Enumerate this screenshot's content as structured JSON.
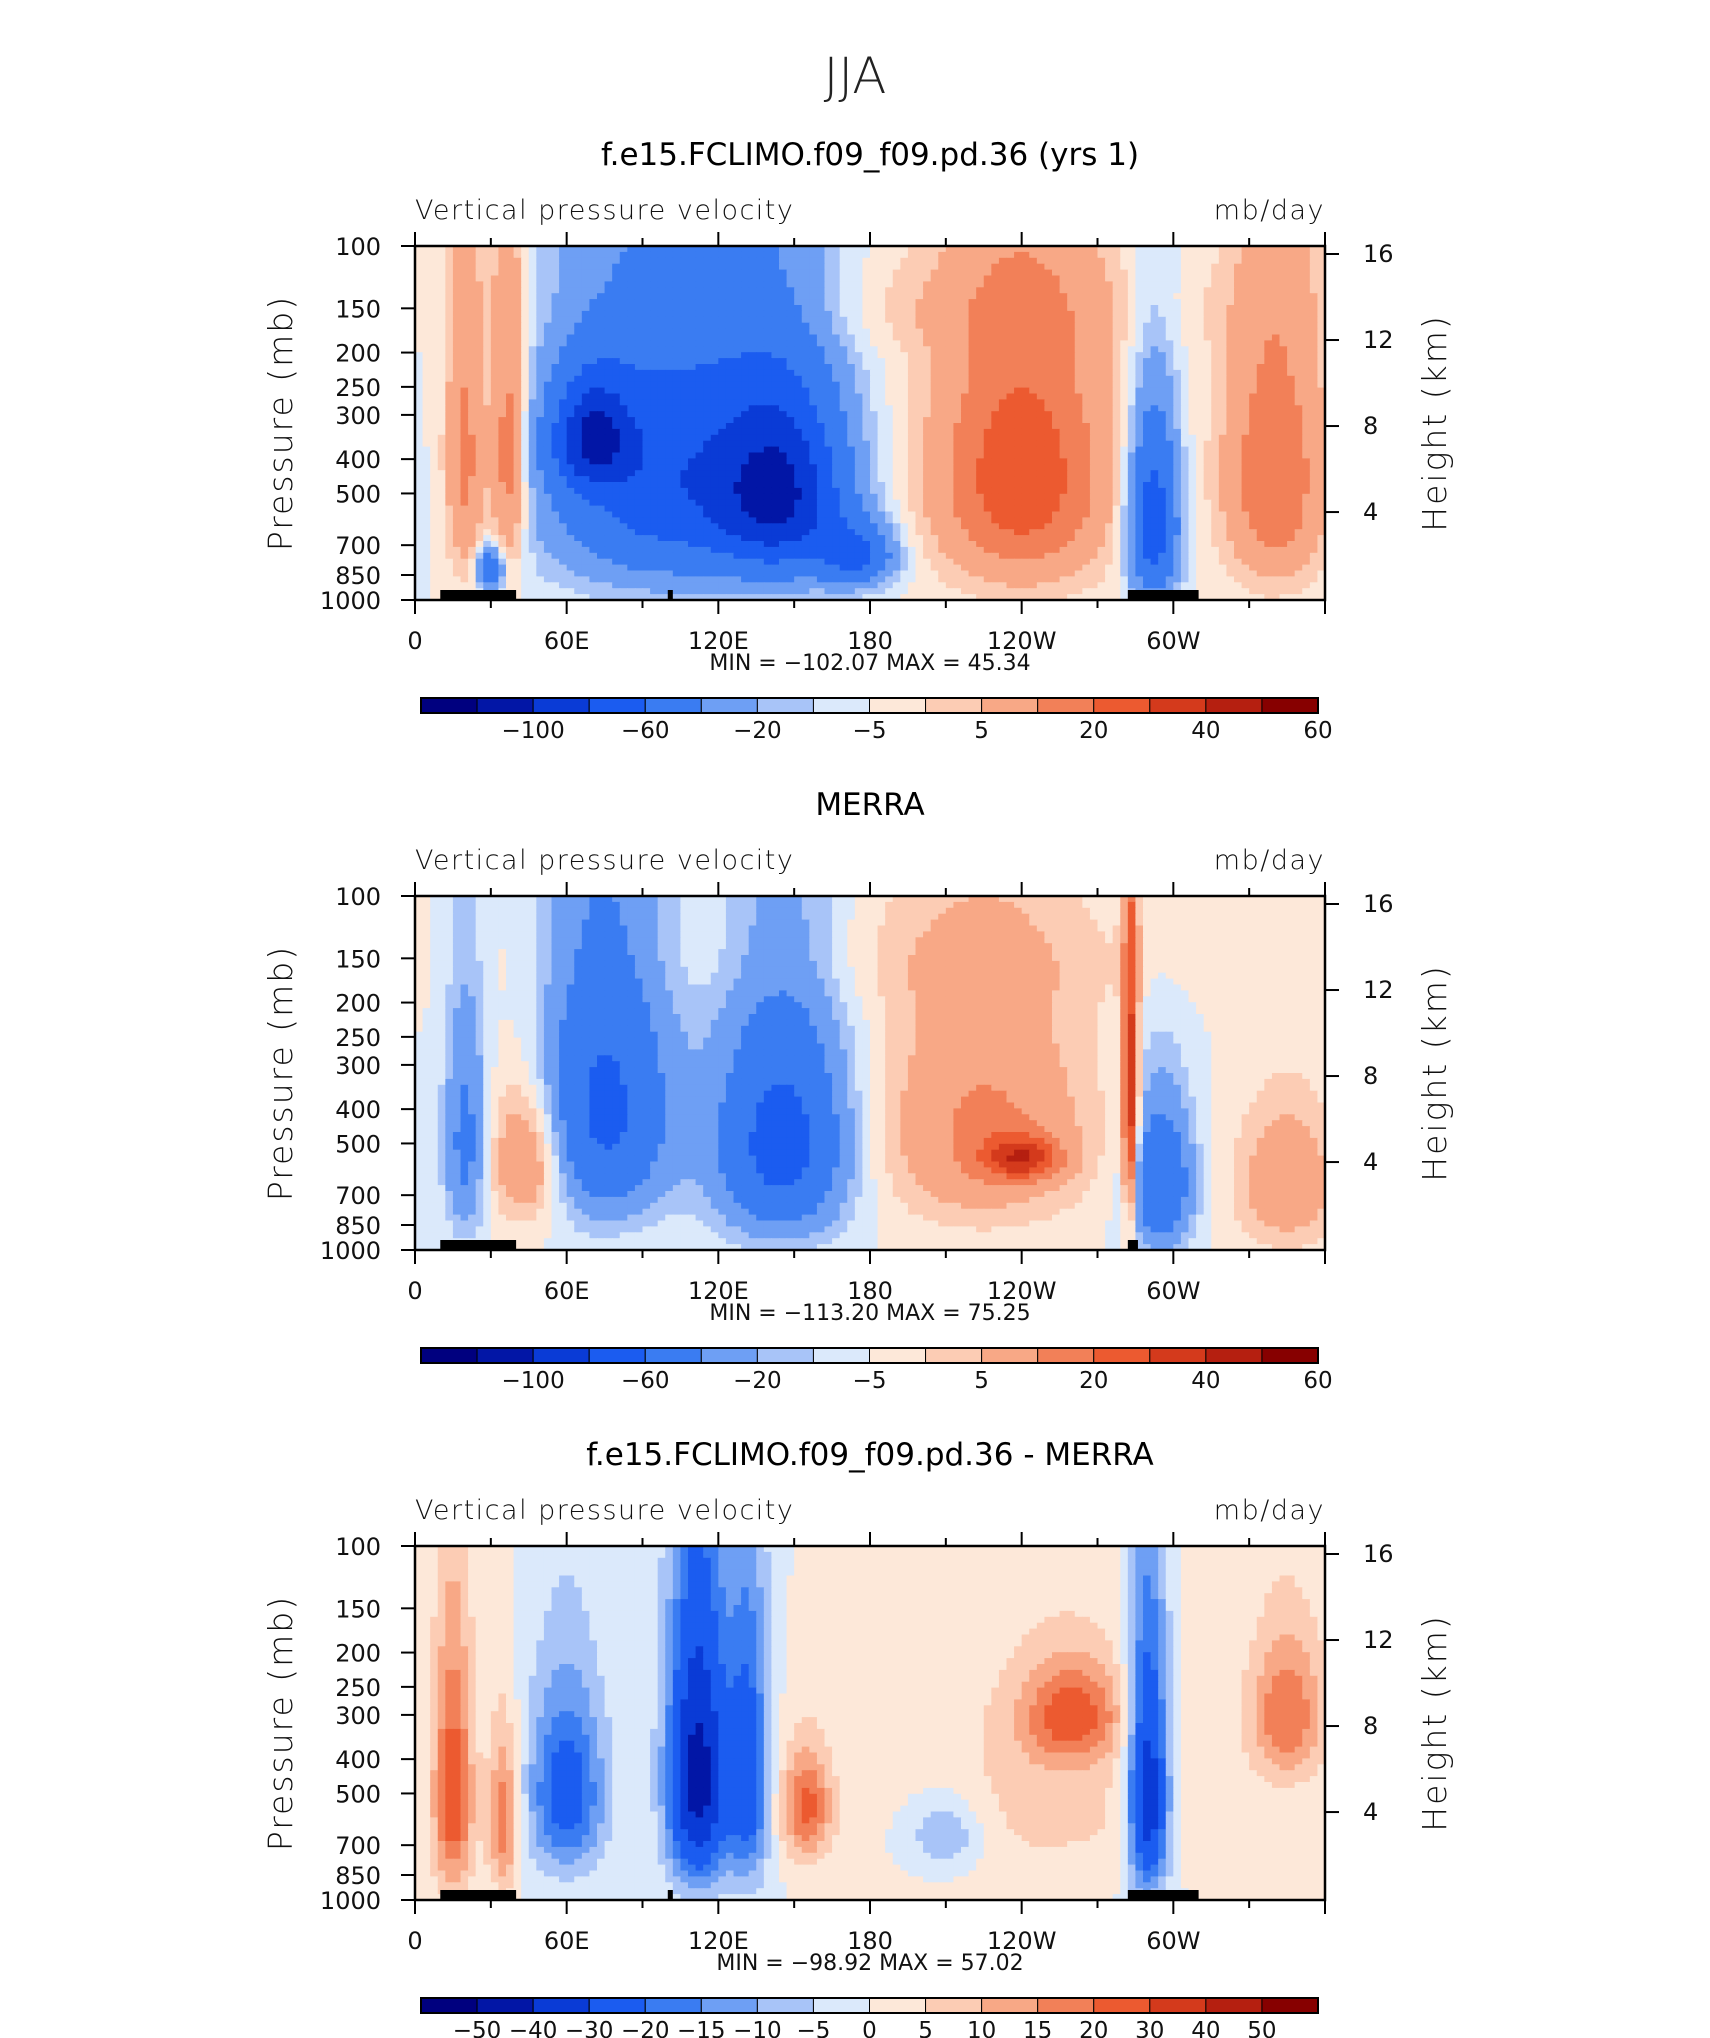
{
  "figure": {
    "suptitle": "JJA"
  },
  "chart_data": [
    {
      "type": "heatmap",
      "title": "f.e15.FCLIMO.f09_f09.pd.36 (yrs 1)",
      "left_label": "Vertical pressure velocity",
      "right_label": "mb/day",
      "ylabel": "Pressure (mb)",
      "ylabel_right": "Height (km)",
      "x_ticks": [
        "0",
        "60E",
        "120E",
        "180",
        "120W",
        "60W"
      ],
      "x_tick_values": [
        0,
        60,
        120,
        180,
        240,
        300
      ],
      "xlim": [
        0,
        360
      ],
      "y_ticks": [
        "100",
        "150",
        "200",
        "250",
        "300",
        "400",
        "500",
        "700",
        "850",
        "1000"
      ],
      "ylim": [
        1000,
        100
      ],
      "y_log": true,
      "height_ticks": [
        "16",
        "12",
        "8",
        "4"
      ],
      "stats": "MIN =  −102.07   MAX =   45.34",
      "colorbar": {
        "colors": [
          "#00007f",
          "#0216a6",
          "#0a3bd6",
          "#1b5cf0",
          "#3a7cf2",
          "#6e9ff4",
          "#a8c4f8",
          "#dbe9fb",
          "#fde8d9",
          "#fcccb4",
          "#f8a886",
          "#f28058",
          "#ec5a30",
          "#d43a1c",
          "#b51f10",
          "#870000"
        ],
        "labels": [
          "−100",
          "−60",
          "−20",
          "−5",
          "5",
          "20",
          "40",
          "60"
        ]
      },
      "field": {
        "blobs": [
          {
            "x": 100,
            "y": 450,
            "sx": 45,
            "sy": 380,
            "v": -55
          },
          {
            "x": 145,
            "y": 500,
            "sx": 25,
            "sy": 300,
            "v": -70
          },
          {
            "x": 70,
            "y": 350,
            "sx": 15,
            "sy": 120,
            "v": -60
          },
          {
            "x": 20,
            "y": 400,
            "sx": 8,
            "sy": 400,
            "v": 25
          },
          {
            "x": 37,
            "y": 400,
            "sx": 7,
            "sy": 400,
            "v": 30
          },
          {
            "x": 30,
            "y": 820,
            "sx": 5,
            "sy": 120,
            "v": -40
          },
          {
            "x": 240,
            "y": 450,
            "sx": 35,
            "sy": 400,
            "v": 38
          },
          {
            "x": 292,
            "y": 600,
            "sx": 10,
            "sy": 350,
            "v": -55
          },
          {
            "x": 340,
            "y": 450,
            "sx": 20,
            "sy": 400,
            "v": 30
          },
          {
            "x": 175,
            "y": 750,
            "sx": 15,
            "sy": 150,
            "v": -40
          },
          {
            "x": 200,
            "y": 150,
            "sx": 130,
            "sy": 50,
            "v": 5
          }
        ],
        "black_fill_x": [
          [
            10,
            40
          ],
          [
            100,
            102
          ],
          [
            282,
            310
          ]
        ]
      }
    },
    {
      "type": "heatmap",
      "title": "MERRA",
      "left_label": "Vertical pressure velocity",
      "right_label": "mb/day",
      "ylabel": "Pressure (mb)",
      "ylabel_right": "Height (km)",
      "x_ticks": [
        "0",
        "60E",
        "120E",
        "180",
        "120W",
        "60W"
      ],
      "x_tick_values": [
        0,
        60,
        120,
        180,
        240,
        300
      ],
      "xlim": [
        0,
        360
      ],
      "y_ticks": [
        "100",
        "150",
        "200",
        "250",
        "300",
        "400",
        "500",
        "700",
        "850",
        "1000"
      ],
      "ylim": [
        1000,
        100
      ],
      "y_log": true,
      "height_ticks": [
        "16",
        "12",
        "8",
        "4"
      ],
      "stats": "MIN =  −113.20   MAX =   75.25",
      "colorbar": {
        "colors": [
          "#00007f",
          "#0216a6",
          "#0a3bd6",
          "#1b5cf0",
          "#3a7cf2",
          "#6e9ff4",
          "#a8c4f8",
          "#dbe9fb",
          "#fde8d9",
          "#fcccb4",
          "#f8a886",
          "#f28058",
          "#ec5a30",
          "#d43a1c",
          "#b51f10",
          "#870000"
        ],
        "labels": [
          "−100",
          "−60",
          "−20",
          "−5",
          "5",
          "20",
          "40",
          "60"
        ]
      },
      "field": {
        "blobs": [
          {
            "x": 75,
            "y": 400,
            "sx": 25,
            "sy": 350,
            "v": -45
          },
          {
            "x": 145,
            "y": 500,
            "sx": 25,
            "sy": 350,
            "v": -50
          },
          {
            "x": 45,
            "y": 550,
            "sx": 15,
            "sy": 250,
            "v": 25
          },
          {
            "x": 20,
            "y": 500,
            "sx": 8,
            "sy": 350,
            "v": -25
          },
          {
            "x": 225,
            "y": 450,
            "sx": 40,
            "sy": 350,
            "v": 22
          },
          {
            "x": 240,
            "y": 550,
            "sx": 15,
            "sy": 80,
            "v": 35
          },
          {
            "x": 295,
            "y": 650,
            "sx": 12,
            "sy": 300,
            "v": -40
          },
          {
            "x": 283,
            "y": 400,
            "sx": 3,
            "sy": 400,
            "v": 50
          },
          {
            "x": 345,
            "y": 650,
            "sx": 20,
            "sy": 300,
            "v": 18
          },
          {
            "x": 200,
            "y": 150,
            "sx": 150,
            "sy": 60,
            "v": 4
          }
        ],
        "black_fill_x": [
          [
            10,
            40
          ],
          [
            282,
            286
          ]
        ]
      }
    },
    {
      "type": "heatmap",
      "title": "f.e15.FCLIMO.f09_f09.pd.36 - MERRA",
      "left_label": "Vertical pressure velocity",
      "right_label": "mb/day",
      "ylabel": "Pressure (mb)",
      "ylabel_right": "Height (km)",
      "x_ticks": [
        "0",
        "60E",
        "120E",
        "180",
        "120W",
        "60W"
      ],
      "x_tick_values": [
        0,
        60,
        120,
        180,
        240,
        300
      ],
      "xlim": [
        0,
        360
      ],
      "y_ticks": [
        "100",
        "150",
        "200",
        "250",
        "300",
        "400",
        "500",
        "700",
        "850",
        "1000"
      ],
      "ylim": [
        1000,
        100
      ],
      "y_log": true,
      "height_ticks": [
        "16",
        "12",
        "8",
        "4"
      ],
      "stats": "MIN =  −98.92   MAX =   57.02",
      "colorbar": {
        "colors": [
          "#00007f",
          "#0216a6",
          "#0a3bd6",
          "#1b5cf0",
          "#3a7cf2",
          "#6e9ff4",
          "#a8c4f8",
          "#dbe9fb",
          "#fde8d9",
          "#fcccb4",
          "#f8a886",
          "#f28058",
          "#ec5a30",
          "#d43a1c",
          "#b51f10",
          "#870000"
        ],
        "labels": [
          "−50",
          "−40",
          "−30",
          "−20",
          "−15",
          "−10",
          "−5",
          "0",
          "5",
          "10",
          "15",
          "20",
          "30",
          "40",
          "50"
        ]
      },
      "field": {
        "blobs": [
          {
            "x": 112,
            "y": 450,
            "sx": 12,
            "sy": 400,
            "v": -45
          },
          {
            "x": 60,
            "y": 500,
            "sx": 15,
            "sy": 300,
            "v": -25
          },
          {
            "x": 15,
            "y": 500,
            "sx": 8,
            "sy": 400,
            "v": 25
          },
          {
            "x": 35,
            "y": 600,
            "sx": 6,
            "sy": 300,
            "v": 20
          },
          {
            "x": 155,
            "y": 550,
            "sx": 10,
            "sy": 200,
            "v": 22
          },
          {
            "x": 132,
            "y": 450,
            "sx": 8,
            "sy": 400,
            "v": -25
          },
          {
            "x": 210,
            "y": 650,
            "sx": 15,
            "sy": 150,
            "v": -12
          },
          {
            "x": 260,
            "y": 300,
            "sx": 20,
            "sy": 100,
            "v": 20
          },
          {
            "x": 290,
            "y": 500,
            "sx": 8,
            "sy": 400,
            "v": -40
          },
          {
            "x": 345,
            "y": 300,
            "sx": 15,
            "sy": 150,
            "v": 20
          },
          {
            "x": 250,
            "y": 500,
            "sx": 50,
            "sy": 350,
            "v": 7
          }
        ],
        "black_fill_x": [
          [
            10,
            40
          ],
          [
            100,
            102
          ],
          [
            282,
            310
          ]
        ]
      }
    }
  ]
}
